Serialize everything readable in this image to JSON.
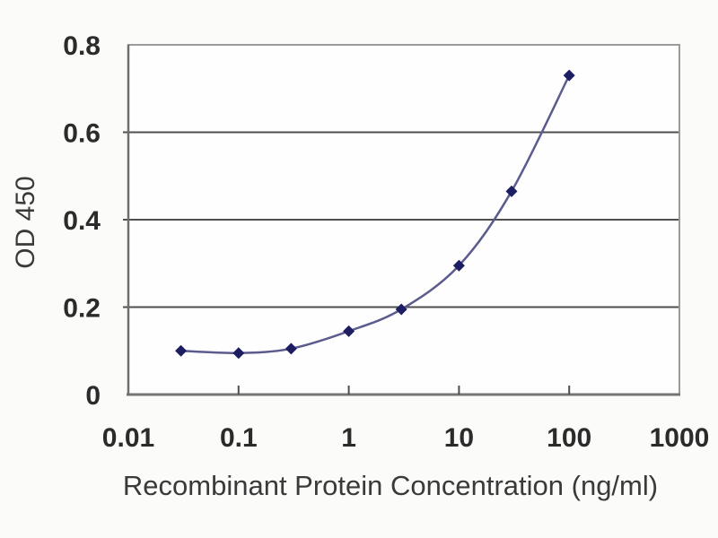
{
  "chart_data": {
    "type": "line",
    "title": "",
    "xlabel": "Recombinant Protein Concentration (ng/ml)",
    "ylabel": "OD 450",
    "x_scale": "log",
    "xlim": [
      0.01,
      1000
    ],
    "ylim": [
      0,
      0.8
    ],
    "x": [
      0.03,
      0.1,
      0.3,
      1,
      3,
      10,
      30,
      100
    ],
    "values": [
      0.1,
      0.095,
      0.105,
      0.145,
      0.195,
      0.295,
      0.465,
      0.73
    ],
    "x_tick_values": [
      0.01,
      0.1,
      1,
      10,
      100,
      1000
    ],
    "x_tick_labels": [
      "0.01",
      "0.1",
      "1",
      "10",
      "100",
      "1000"
    ],
    "y_tick_values": [
      0,
      0.2,
      0.4,
      0.6,
      0.8
    ],
    "y_tick_labels": [
      "0",
      "0.2",
      "0.4",
      "0.6",
      "0.8"
    ],
    "grid": "horizontal",
    "legend": "none",
    "marker": "diamond",
    "colors": {
      "line": "#5b5b8e",
      "marker": "#1d1d62",
      "gridline": "#4e4e4e",
      "plot_border": "#9b9b9b",
      "axis_line": "#757575",
      "text": "#2b2b2b",
      "plot_background": "#fefefe",
      "page_background": "#fbfbf9"
    }
  }
}
